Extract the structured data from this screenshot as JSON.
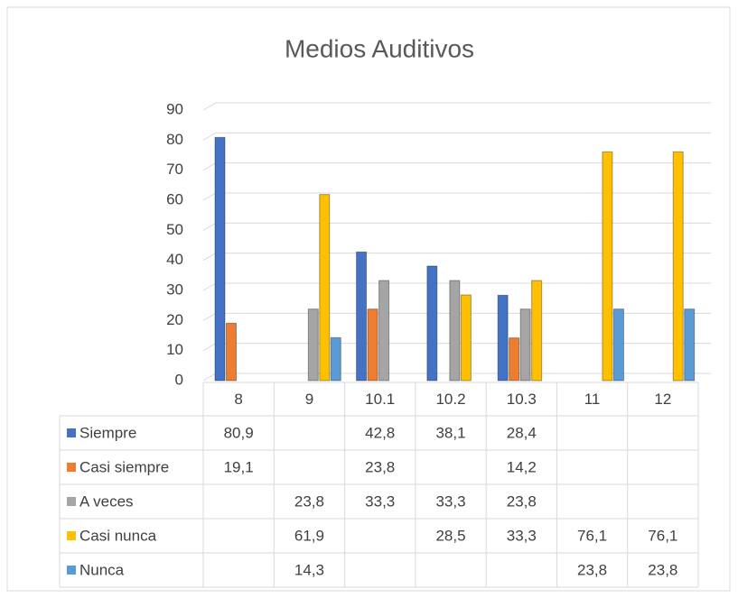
{
  "chart_data": {
    "type": "bar",
    "title": "Medios Auditivos",
    "categories": [
      "8",
      "9",
      "10.1",
      "10.2",
      "10.3",
      "11",
      "12"
    ],
    "series": [
      {
        "name": "Siempre",
        "color": "#4472c4",
        "values": [
          80.9,
          null,
          42.8,
          38.1,
          28.4,
          null,
          null
        ],
        "value_labels": [
          "80,9",
          null,
          "42,8",
          "38,1",
          "28,4",
          null,
          null
        ]
      },
      {
        "name": "Casi siempre",
        "color": "#ed7d31",
        "values": [
          19.1,
          null,
          23.8,
          null,
          14.2,
          null,
          null
        ],
        "value_labels": [
          "19,1",
          null,
          "23,8",
          null,
          "14,2",
          null,
          null
        ]
      },
      {
        "name": "A veces",
        "color": "#a5a5a5",
        "values": [
          null,
          23.8,
          33.3,
          33.3,
          23.8,
          null,
          null
        ],
        "value_labels": [
          null,
          "23,8",
          "33,3",
          "33,3",
          "23,8",
          null,
          null
        ]
      },
      {
        "name": "Casi nunca",
        "color": "#ffc000",
        "values": [
          null,
          61.9,
          null,
          28.5,
          33.3,
          76.1,
          76.1
        ],
        "value_labels": [
          null,
          "61,9",
          null,
          "28,5",
          "33,3",
          "76,1",
          "76,1"
        ]
      },
      {
        "name": "Nunca",
        "color": "#5b9bd5",
        "values": [
          null,
          14.3,
          null,
          null,
          null,
          23.8,
          23.8
        ],
        "value_labels": [
          null,
          "14,3",
          null,
          null,
          null,
          "23,8",
          "23,8"
        ]
      }
    ],
    "ylim": [
      0,
      90
    ],
    "yticks": [
      0,
      10,
      20,
      30,
      40,
      50,
      60,
      70,
      80,
      90
    ],
    "grid": true,
    "data_table": true
  }
}
